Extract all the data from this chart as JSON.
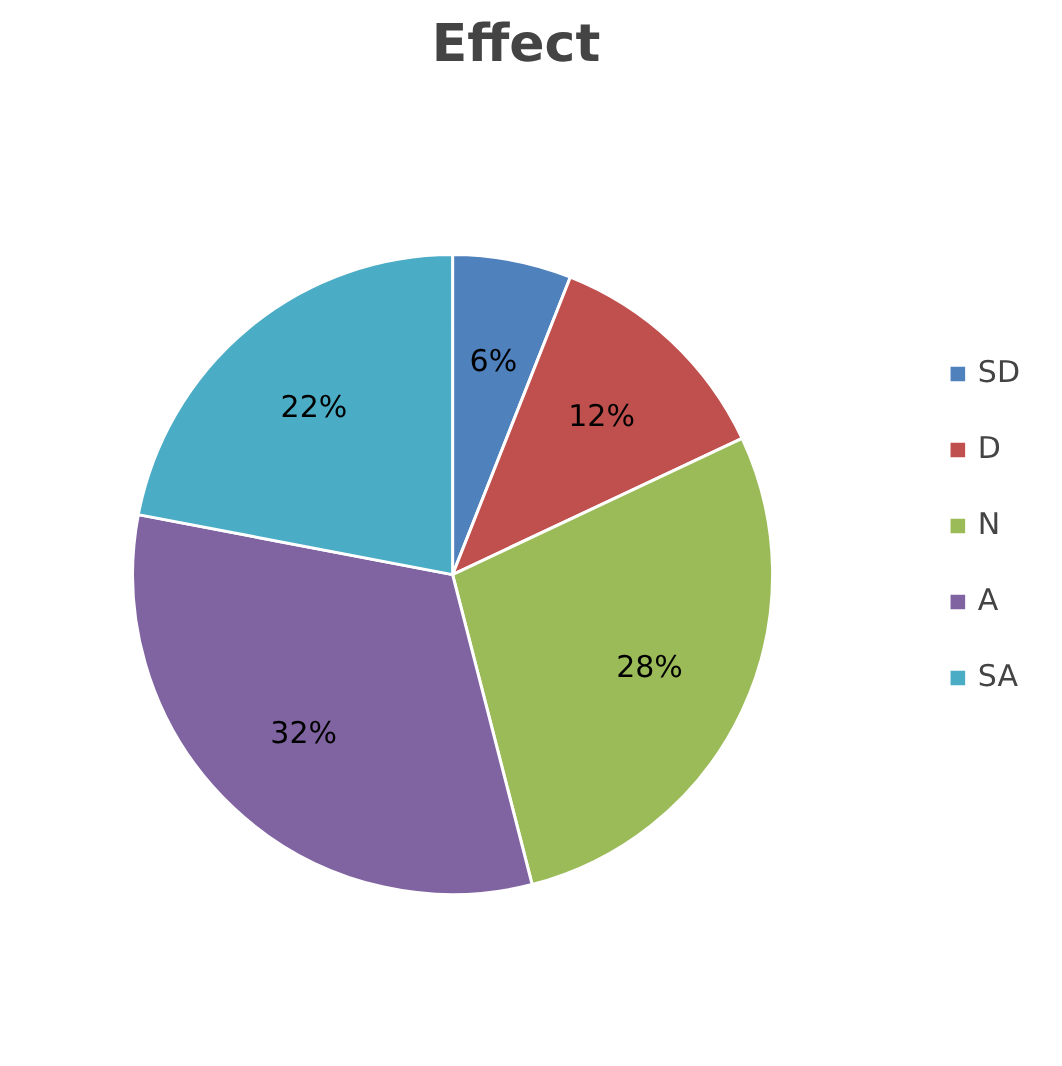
{
  "chart_data": {
    "type": "pie",
    "title": "Effect",
    "categories": [
      "SD",
      "D",
      "N",
      "A",
      "SA"
    ],
    "values": [
      6,
      12,
      28,
      32,
      22
    ],
    "colors": [
      "#4f81bd",
      "#c0504d",
      "#9bbb59",
      "#8064a2",
      "#4bacc6"
    ],
    "value_labels": [
      "6%",
      "12%",
      "28%",
      "32%",
      "22%"
    ],
    "legend": "right"
  }
}
